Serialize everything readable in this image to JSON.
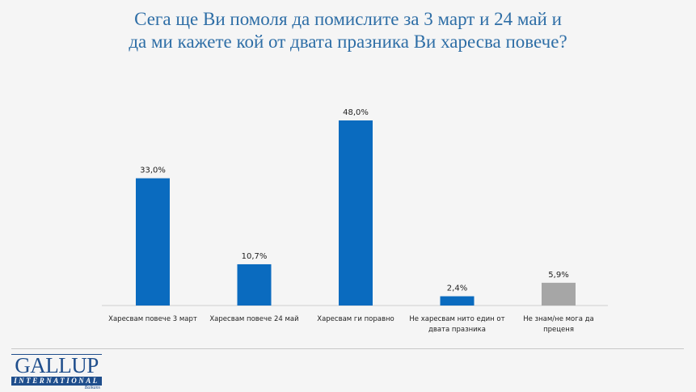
{
  "title_lines": [
    "Сега ще Ви помоля да помислите за 3 март и 24 май и",
    "да ми кажете кой от двата празника Ви харесва повече?"
  ],
  "logo": {
    "name": "GALLUP",
    "subtitle": "INTERNATIONAL",
    "region": "Balkans"
  },
  "colors": {
    "primary_bar": "#0a6bbf",
    "neutral_bar": "#a6a6a6",
    "title": "#2e6ea6",
    "logo": "#1f4e8c"
  },
  "chart_data": {
    "type": "bar",
    "title": "Сега ще Ви помоля да помислите за 3 март и 24 май и да ми кажете кой от двата празника Ви харесва повече?",
    "xlabel": "",
    "ylabel": "",
    "ylim": [
      0,
      50
    ],
    "grid": false,
    "legend": "none",
    "categories": [
      [
        "Харесвам повече 3 март"
      ],
      [
        "Харесвам повече 24 май"
      ],
      [
        "Харесвам ги поравно"
      ],
      [
        "Не харесвам нито един от",
        "двата празника"
      ],
      [
        "Не знам/не мога да",
        "преценя"
      ]
    ],
    "values": [
      33.0,
      10.7,
      48.0,
      2.4,
      5.9
    ],
    "data_labels": [
      "33,0%",
      "10,7%",
      "48,0%",
      "2,4%",
      "5,9%"
    ],
    "bar_colors": [
      "#0a6bbf",
      "#0a6bbf",
      "#0a6bbf",
      "#0a6bbf",
      "#a6a6a6"
    ]
  }
}
